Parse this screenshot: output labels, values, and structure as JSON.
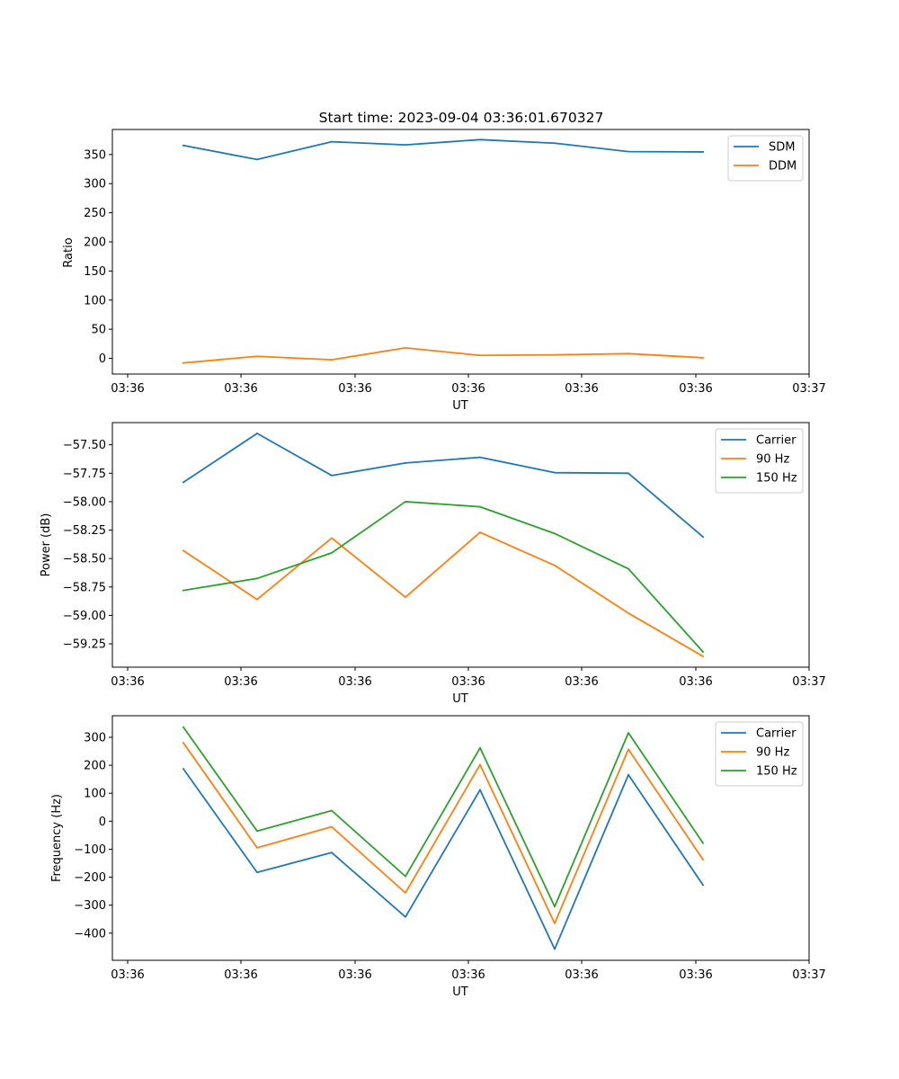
{
  "chart_data": [
    {
      "type": "line",
      "title": "Start time: 2023-09-04 03:36:01.670327",
      "xlabel": "UT",
      "ylabel": "Ratio",
      "x_tick_labels": [
        "03:36",
        "03:36",
        "03:36",
        "03:36",
        "03:36",
        "03:36",
        "03:36",
        "03:37"
      ],
      "y_ticks": [
        0,
        50,
        100,
        150,
        200,
        250,
        300,
        350
      ],
      "y_tick_labels": [
        "0",
        "50",
        "100",
        "150",
        "200",
        "250",
        "300",
        "350"
      ],
      "ylim": [
        -27,
        393
      ],
      "legend": "top-right",
      "series": [
        {
          "name": "SDM",
          "color": "#1f77b4",
          "values": [
            365.5,
            341.5,
            372.0,
            366.5,
            375.5,
            369.5,
            355.0,
            354.5
          ]
        },
        {
          "name": "DDM",
          "color": "#ff7f0e",
          "values": [
            -8.0,
            3.5,
            -2.5,
            18.0,
            5.0,
            6.0,
            8.0,
            1.0
          ]
        }
      ]
    },
    {
      "type": "line",
      "title": "",
      "xlabel": "UT",
      "ylabel": "Power (dB)",
      "x_tick_labels": [
        "03:36",
        "03:36",
        "03:36",
        "03:36",
        "03:36",
        "03:36",
        "03:36",
        "03:37"
      ],
      "y_ticks": [
        -57.5,
        -57.75,
        -58.0,
        -58.25,
        -58.5,
        -58.75,
        -59.0,
        -59.25
      ],
      "y_tick_labels": [
        "−57.50",
        "−57.75",
        "−58.00",
        "−58.25",
        "−58.50",
        "−58.75",
        "−59.00",
        "−59.25"
      ],
      "ylim": [
        -59.455,
        -57.305
      ],
      "legend": "top-right",
      "series": [
        {
          "name": "Carrier",
          "color": "#1f77b4",
          "values": [
            -57.83,
            -57.4,
            -57.77,
            -57.66,
            -57.61,
            -57.745,
            -57.75,
            -58.31
          ]
        },
        {
          "name": "90 Hz",
          "color": "#ff7f0e",
          "values": [
            -58.43,
            -58.86,
            -58.32,
            -58.84,
            -58.27,
            -58.56,
            -58.98,
            -59.36
          ]
        },
        {
          "name": "150 Hz",
          "color": "#2ca02c",
          "values": [
            -58.78,
            -58.675,
            -58.45,
            -58.0,
            -58.045,
            -58.28,
            -58.59,
            -59.32
          ]
        }
      ]
    },
    {
      "type": "line",
      "title": "",
      "xlabel": "UT",
      "ylabel": "Frequency (Hz)",
      "x_tick_labels": [
        "03:36",
        "03:36",
        "03:36",
        "03:36",
        "03:36",
        "03:36",
        "03:36",
        "03:37"
      ],
      "y_ticks": [
        300,
        200,
        100,
        0,
        -100,
        -200,
        -300,
        -400
      ],
      "y_tick_labels": [
        "300",
        "200",
        "100",
        "0",
        "−100",
        "−200",
        "−300",
        "−400"
      ],
      "ylim": [
        -497,
        377
      ],
      "legend": "top-right",
      "series": [
        {
          "name": "Carrier",
          "color": "#1f77b4",
          "values": [
            187,
            -183,
            -112,
            -342,
            112,
            -457,
            166,
            -228
          ]
        },
        {
          "name": "90 Hz",
          "color": "#ff7f0e",
          "values": [
            280,
            -95,
            -20,
            -256,
            202,
            -365,
            257,
            -137
          ]
        },
        {
          "name": "150 Hz",
          "color": "#2ca02c",
          "values": [
            336,
            -35,
            38,
            -197,
            262,
            -305,
            316,
            -78
          ]
        }
      ]
    }
  ]
}
